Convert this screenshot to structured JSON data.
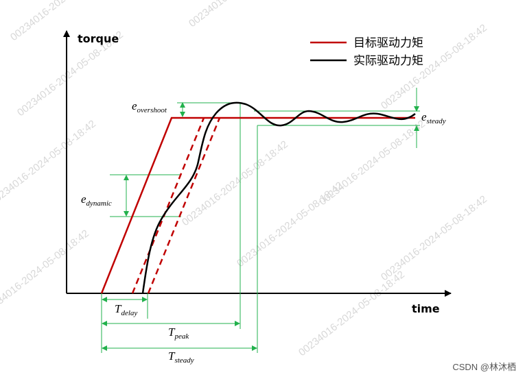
{
  "axes": {
    "y_label": "torque",
    "x_label": "time"
  },
  "legend": [
    {
      "name": "目标驱动力矩",
      "color": "#c00000"
    },
    {
      "name": "实际驱动力矩",
      "color": "#000000"
    }
  ],
  "annotations": {
    "e_overshoot": {
      "symbol": "e",
      "subscript": "overshoot"
    },
    "e_steady": {
      "symbol": "e",
      "subscript": "steady"
    },
    "e_dynamic": {
      "symbol": "e",
      "subscript": "dynamic"
    },
    "t_delay": {
      "symbol": "T",
      "subscript": "delay"
    },
    "t_peak": {
      "symbol": "T",
      "subscript": "peak"
    },
    "t_steady": {
      "symbol": "T",
      "subscript": "steady"
    }
  },
  "watermark": "00234016-2024-05-08-18:42",
  "credit": "CSDN @林沐栖"
}
